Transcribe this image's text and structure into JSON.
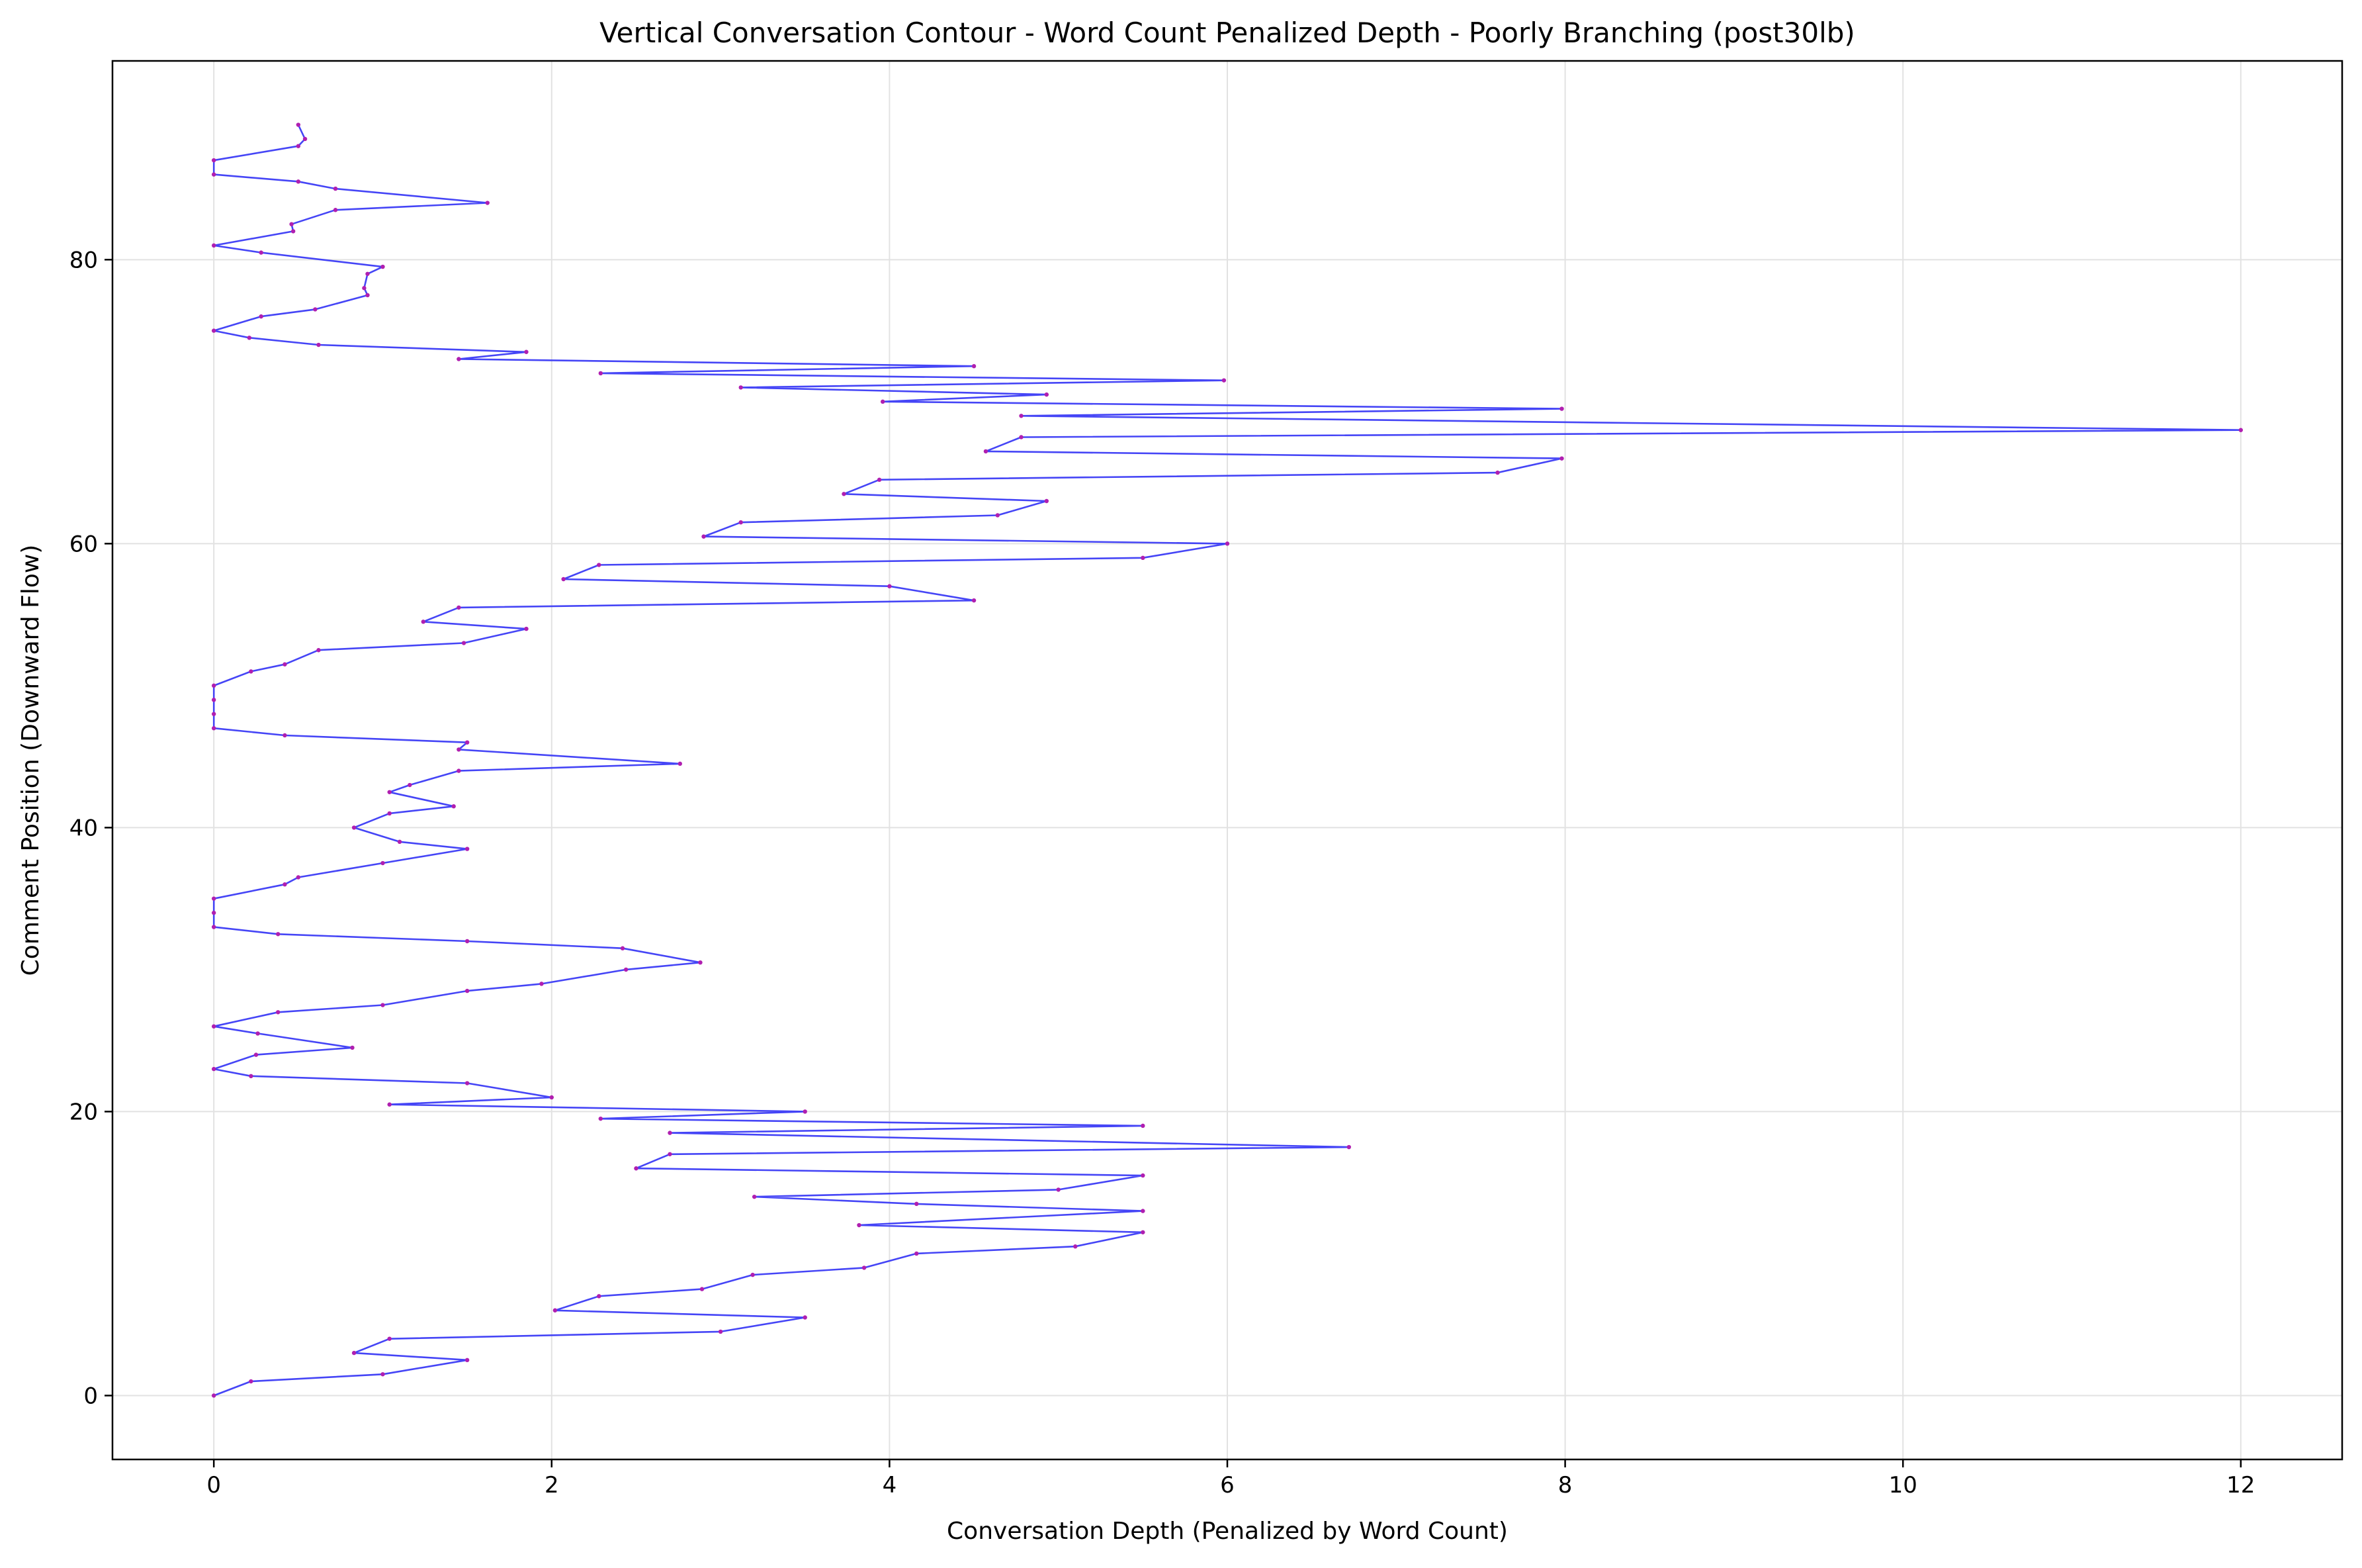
{
  "chart_data": {
    "type": "line",
    "title": "Vertical Conversation Contour - Word Count Penalized Depth - Poorly Branching (post30lb)",
    "xlabel": "Conversation Depth (Penalized by Word Count)",
    "ylabel": "Comment Position (Downward Flow)",
    "xlim": [
      -0.6,
      12.6
    ],
    "ylim": [
      -4.5,
      94.0
    ],
    "xticks": [
      0,
      2,
      4,
      6,
      8,
      10,
      12
    ],
    "yticks": [
      0,
      20,
      40,
      60,
      80
    ],
    "grid": true,
    "colors": {
      "line": "#3b3bf5",
      "marker": "#b01fb0",
      "grid": "#e2e2e2",
      "axes": "#000000"
    },
    "series": [
      {
        "points": [
          [
            0,
            0
          ],
          [
            0.22,
            1
          ],
          [
            1.0,
            1.5
          ],
          [
            1.5,
            2.5
          ],
          [
            0.83,
            3
          ],
          [
            1.04,
            4
          ],
          [
            3.0,
            4.5
          ],
          [
            3.5,
            5.5
          ],
          [
            2.02,
            6
          ],
          [
            2.28,
            7
          ],
          [
            2.89,
            7.5
          ],
          [
            3.19,
            8.5
          ],
          [
            3.85,
            9
          ],
          [
            4.16,
            10
          ],
          [
            5.1,
            10.5
          ],
          [
            5.5,
            11.5
          ],
          [
            3.82,
            12
          ],
          [
            5.5,
            13
          ],
          [
            4.16,
            13.5
          ],
          [
            3.2,
            14
          ],
          [
            5.0,
            14.5
          ],
          [
            5.5,
            15.5
          ],
          [
            2.5,
            16
          ],
          [
            2.7,
            17
          ],
          [
            6.72,
            17.5
          ],
          [
            2.7,
            18.5
          ],
          [
            5.5,
            19
          ],
          [
            2.29,
            19.5
          ],
          [
            3.5,
            20
          ],
          [
            1.04,
            20.5
          ],
          [
            2.0,
            21
          ],
          [
            1.5,
            22
          ],
          [
            0.22,
            22.5
          ],
          [
            0,
            23
          ],
          [
            0.25,
            24
          ],
          [
            0.82,
            24.5
          ],
          [
            0.26,
            25.5
          ],
          [
            0,
            26
          ],
          [
            0.38,
            27
          ],
          [
            1.0,
            27.5
          ],
          [
            1.5,
            28.5
          ],
          [
            1.94,
            29
          ],
          [
            2.44,
            30
          ],
          [
            2.88,
            30.5
          ],
          [
            2.42,
            31.5
          ],
          [
            1.5,
            32
          ],
          [
            0.38,
            32.5
          ],
          [
            0,
            33
          ],
          [
            0,
            34
          ],
          [
            0,
            35
          ],
          [
            0.42,
            36
          ],
          [
            0.5,
            36.5
          ],
          [
            1.0,
            37.5
          ],
          [
            1.5,
            38.5
          ],
          [
            1.1,
            39
          ],
          [
            0.83,
            40
          ],
          [
            1.04,
            41
          ],
          [
            1.42,
            41.5
          ],
          [
            1.04,
            42.5
          ],
          [
            1.16,
            43
          ],
          [
            1.45,
            44
          ],
          [
            2.76,
            44.5
          ],
          [
            1.45,
            45.5
          ],
          [
            1.5,
            46
          ],
          [
            0.42,
            46.5
          ],
          [
            0,
            47
          ],
          [
            0,
            48
          ],
          [
            0,
            49
          ],
          [
            0,
            50
          ],
          [
            0.22,
            51
          ],
          [
            0.42,
            51.5
          ],
          [
            0.62,
            52.5
          ],
          [
            1.48,
            53
          ],
          [
            1.85,
            54
          ],
          [
            1.24,
            54.5
          ],
          [
            1.45,
            55.5
          ],
          [
            4.5,
            56
          ],
          [
            4.0,
            57
          ],
          [
            2.07,
            57.5
          ],
          [
            2.28,
            58.5
          ],
          [
            5.5,
            59
          ],
          [
            6.0,
            60
          ],
          [
            2.9,
            60.5
          ],
          [
            3.12,
            61.5
          ],
          [
            4.64,
            62
          ],
          [
            4.93,
            63
          ],
          [
            3.73,
            63.5
          ],
          [
            3.94,
            64.5
          ],
          [
            7.6,
            65
          ],
          [
            7.98,
            66
          ],
          [
            4.57,
            66.5
          ],
          [
            4.78,
            67.5
          ],
          [
            12.0,
            68
          ],
          [
            4.78,
            69
          ],
          [
            7.98,
            69.5
          ],
          [
            3.96,
            70
          ],
          [
            4.93,
            70.5
          ],
          [
            3.12,
            71
          ],
          [
            5.98,
            71.5
          ],
          [
            2.29,
            72
          ],
          [
            4.5,
            72.5
          ],
          [
            1.45,
            73
          ],
          [
            1.85,
            73.5
          ],
          [
            0.62,
            74
          ],
          [
            0.21,
            74.5
          ],
          [
            0,
            75
          ],
          [
            0.28,
            76
          ],
          [
            0.6,
            76.5
          ],
          [
            0.91,
            77.5
          ],
          [
            0.89,
            78
          ],
          [
            0.91,
            79
          ],
          [
            1.0,
            79.5
          ],
          [
            0.28,
            80.5
          ],
          [
            0,
            81
          ],
          [
            0.47,
            82
          ],
          [
            0.46,
            82.5
          ],
          [
            0.72,
            83.5
          ],
          [
            1.62,
            84
          ],
          [
            0.72,
            85
          ],
          [
            0.5,
            85.5
          ],
          [
            0,
            86
          ],
          [
            0,
            87
          ],
          [
            0.5,
            88
          ],
          [
            0.54,
            88.5
          ],
          [
            0.5,
            89.5
          ]
        ]
      }
    ]
  }
}
